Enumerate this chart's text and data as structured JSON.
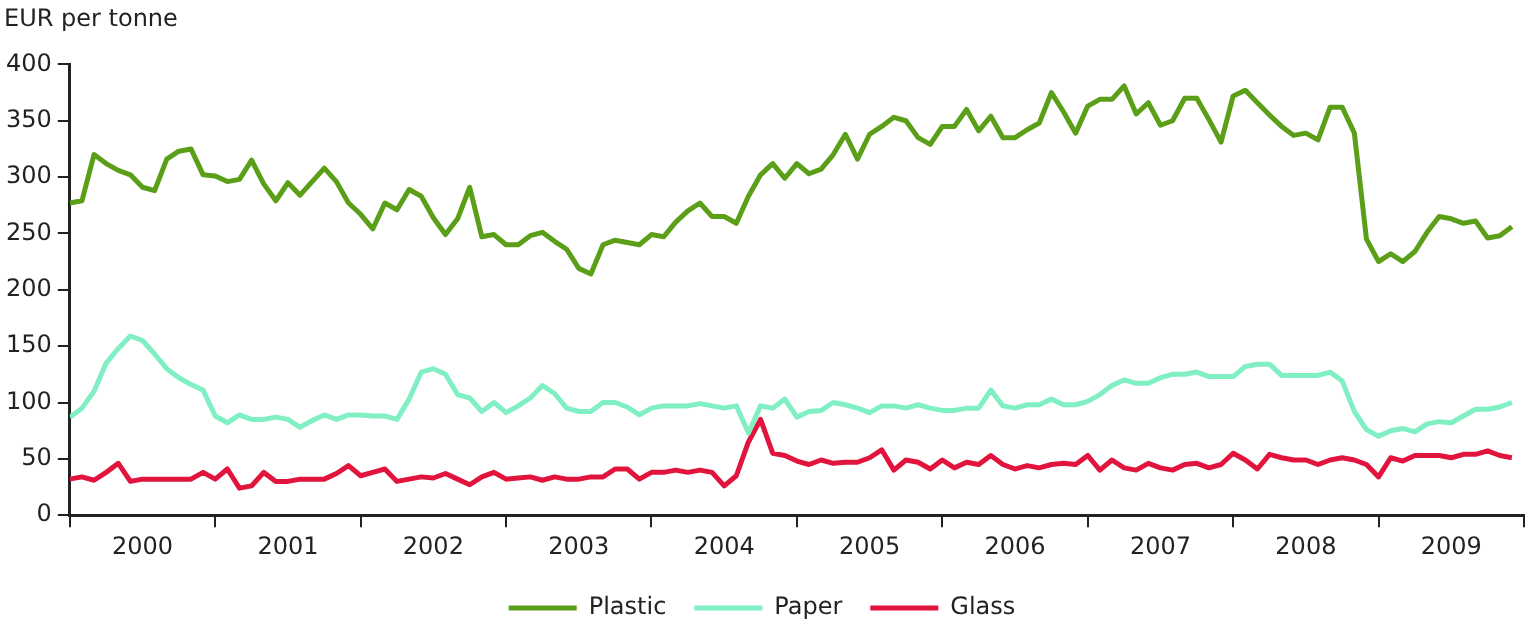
{
  "chart_data": {
    "type": "line",
    "ylabel": "EUR per tonne",
    "x": [
      "2000-01",
      "2000-02",
      "2000-03",
      "2000-04",
      "2000-05",
      "2000-06",
      "2000-07",
      "2000-08",
      "2000-09",
      "2000-10",
      "2000-11",
      "2000-12",
      "2001-01",
      "2001-02",
      "2001-03",
      "2001-04",
      "2001-05",
      "2001-06",
      "2001-07",
      "2001-08",
      "2001-09",
      "2001-10",
      "2001-11",
      "2001-12",
      "2002-01",
      "2002-02",
      "2002-03",
      "2002-04",
      "2002-05",
      "2002-06",
      "2002-07",
      "2002-08",
      "2002-09",
      "2002-10",
      "2002-11",
      "2002-12",
      "2003-01",
      "2003-02",
      "2003-03",
      "2003-04",
      "2003-05",
      "2003-06",
      "2003-07",
      "2003-08",
      "2003-09",
      "2003-10",
      "2003-11",
      "2003-12",
      "2004-01",
      "2004-02",
      "2004-03",
      "2004-04",
      "2004-05",
      "2004-06",
      "2004-07",
      "2004-08",
      "2004-09",
      "2004-10",
      "2004-11",
      "2004-12",
      "2005-01",
      "2005-02",
      "2005-03",
      "2005-04",
      "2005-05",
      "2005-06",
      "2005-07",
      "2005-08",
      "2005-09",
      "2005-10",
      "2005-11",
      "2005-12",
      "2006-01",
      "2006-02",
      "2006-03",
      "2006-04",
      "2006-05",
      "2006-06",
      "2006-07",
      "2006-08",
      "2006-09",
      "2006-10",
      "2006-11",
      "2006-12",
      "2007-01",
      "2007-02",
      "2007-03",
      "2007-04",
      "2007-05",
      "2007-06",
      "2007-07",
      "2007-08",
      "2007-09",
      "2007-10",
      "2007-11",
      "2007-12",
      "2008-01",
      "2008-02",
      "2008-03",
      "2008-04",
      "2008-05",
      "2008-06",
      "2008-07",
      "2008-08",
      "2008-09",
      "2008-10",
      "2008-11",
      "2008-12",
      "2009-01",
      "2009-02",
      "2009-03",
      "2009-04",
      "2009-05",
      "2009-06",
      "2009-07",
      "2009-08",
      "2009-09",
      "2009-10",
      "2009-11",
      "2009-12"
    ],
    "xlim": [
      "2000-01",
      "2010-01"
    ],
    "xticks": [
      {
        "value": "2000-01",
        "label": null
      },
      {
        "value": "2000-07",
        "label": "2000"
      },
      {
        "value": "2001-01",
        "label": null
      },
      {
        "value": "2001-07",
        "label": "2001"
      },
      {
        "value": "2002-01",
        "label": null
      },
      {
        "value": "2002-07",
        "label": "2002"
      },
      {
        "value": "2003-01",
        "label": null
      },
      {
        "value": "2003-07",
        "label": "2003"
      },
      {
        "value": "2004-01",
        "label": null
      },
      {
        "value": "2004-07",
        "label": "2004"
      },
      {
        "value": "2005-01",
        "label": null
      },
      {
        "value": "2005-07",
        "label": "2005"
      },
      {
        "value": "2006-01",
        "label": null
      },
      {
        "value": "2006-07",
        "label": "2006"
      },
      {
        "value": "2007-01",
        "label": null
      },
      {
        "value": "2007-07",
        "label": "2007"
      },
      {
        "value": "2008-01",
        "label": null
      },
      {
        "value": "2008-07",
        "label": "2008"
      },
      {
        "value": "2009-01",
        "label": null
      },
      {
        "value": "2009-07",
        "label": "2009"
      },
      {
        "value": "2010-01",
        "label": null
      }
    ],
    "ylim": [
      0,
      400
    ],
    "yticks": [
      0,
      50,
      100,
      150,
      200,
      250,
      300,
      350,
      400
    ],
    "legend": "bottom",
    "series": [
      {
        "name": "Plastic",
        "color": "#5b9e18",
        "values": [
          277,
          279,
          320,
          312,
          306,
          302,
          291,
          288,
          316,
          323,
          325,
          302,
          301,
          296,
          298,
          315,
          294,
          279,
          295,
          284,
          296,
          308,
          296,
          277,
          267,
          254,
          277,
          271,
          289,
          283,
          264,
          249,
          263,
          291,
          247,
          249,
          240,
          240,
          248,
          251,
          243,
          236,
          219,
          214,
          240,
          244,
          242,
          240,
          249,
          247,
          260,
          270,
          277,
          265,
          265,
          259,
          283,
          302,
          312,
          299,
          312,
          303,
          307,
          320,
          338,
          316,
          338,
          345,
          353,
          350,
          335,
          329,
          345,
          345,
          360,
          341,
          354,
          335,
          335,
          342,
          348,
          375,
          358,
          339,
          363,
          369,
          369,
          381,
          356,
          366,
          346,
          350,
          370,
          370,
          351,
          331,
          372,
          377,
          366,
          355,
          345,
          337,
          339,
          333,
          362,
          362,
          339,
          245,
          225,
          232,
          225,
          234,
          251,
          265,
          263,
          259,
          261,
          246,
          248,
          256
        ]
      },
      {
        "name": "Paper",
        "color": "#80f0c4",
        "values": [
          87,
          95,
          110,
          135,
          148,
          159,
          155,
          143,
          130,
          122,
          116,
          111,
          88,
          82,
          89,
          85,
          85,
          87,
          85,
          78,
          84,
          89,
          85,
          89,
          89,
          88,
          88,
          85,
          103,
          127,
          130,
          125,
          107,
          104,
          92,
          100,
          91,
          97,
          104,
          115,
          108,
          95,
          92,
          92,
          100,
          100,
          96,
          89,
          95,
          97,
          97,
          97,
          99,
          97,
          95,
          97,
          73,
          97,
          95,
          103,
          87,
          92,
          93,
          100,
          98,
          95,
          91,
          97,
          97,
          95,
          98,
          95,
          93,
          93,
          95,
          95,
          111,
          97,
          95,
          98,
          98,
          103,
          98,
          98,
          101,
          107,
          115,
          120,
          117,
          117,
          122,
          125,
          125,
          127,
          123,
          123,
          123,
          132,
          134,
          134,
          124,
          124,
          124,
          124,
          127,
          119,
          92,
          76,
          70,
          75,
          77,
          74,
          81,
          83,
          82,
          88,
          94,
          94,
          96,
          100
        ]
      },
      {
        "name": "Glass",
        "color": "#e0143c",
        "values": [
          32,
          34,
          31,
          38,
          46,
          30,
          32,
          32,
          32,
          32,
          32,
          38,
          32,
          41,
          24,
          26,
          38,
          30,
          30,
          32,
          32,
          32,
          37,
          44,
          35,
          38,
          41,
          30,
          32,
          34,
          33,
          37,
          32,
          27,
          34,
          38,
          32,
          33,
          34,
          31,
          34,
          32,
          32,
          34,
          34,
          41,
          41,
          32,
          38,
          38,
          40,
          38,
          40,
          38,
          26,
          35,
          65,
          85,
          55,
          53,
          48,
          45,
          49,
          46,
          47,
          47,
          51,
          58,
          40,
          49,
          47,
          41,
          49,
          42,
          47,
          45,
          53,
          45,
          41,
          44,
          42,
          45,
          46,
          45,
          53,
          40,
          49,
          42,
          40,
          46,
          42,
          40,
          45,
          46,
          42,
          45,
          55,
          49,
          41,
          54,
          51,
          49,
          49,
          45,
          49,
          51,
          49,
          45,
          34,
          51,
          48,
          53,
          53,
          53,
          51,
          54,
          54,
          57,
          53,
          51
        ]
      }
    ]
  }
}
